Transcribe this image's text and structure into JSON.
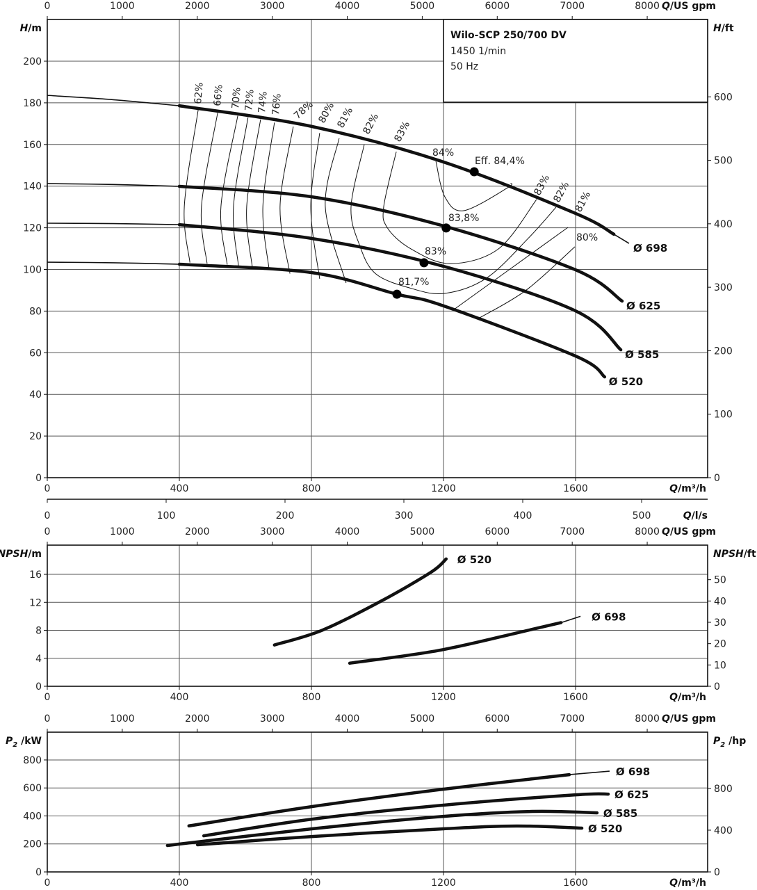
{
  "info_box": {
    "title": "Wilo-SCP 250/700 DV",
    "speed": "1450 1/min",
    "frequency": "50 Hz"
  },
  "chart_data": [
    {
      "type": "line",
      "id": "head",
      "ylabel_left": {
        "sym": "H",
        "unit": "/m"
      },
      "ylabel_right": {
        "sym": "H",
        "unit": "/ft"
      },
      "xlabel_bottom": {
        "sym": "Q",
        "unit": "/m³/h"
      },
      "xlabel_top": {
        "sym": "Q",
        "unit": "/US gpm"
      },
      "xlabel_ls": {
        "sym": "Q",
        "unit": "/l/s"
      },
      "xlim": [
        0,
        2000
      ],
      "ylim": [
        0,
        220
      ],
      "xticks": [
        "0",
        "400",
        "800",
        "1200",
        "1600"
      ],
      "yticks": [
        "0",
        "20",
        "40",
        "60",
        "80",
        "100",
        "120",
        "140",
        "160",
        "180",
        "200"
      ],
      "yticks_right_ft": [
        "0",
        "100",
        "200",
        "300",
        "400",
        "500",
        "600"
      ],
      "xticks_top_gpm": [
        "0",
        "1000",
        "2000",
        "3000",
        "4000",
        "5000",
        "6000",
        "7000",
        "8000"
      ],
      "xticks_ls": [
        "0",
        "100",
        "200",
        "300",
        "400",
        "500"
      ],
      "grid": true,
      "series": [
        {
          "name": "Ø 698",
          "thin_points": [
            [
              0,
              183.6
            ],
            [
              200,
              181.5
            ],
            [
              400,
              178.6
            ]
          ],
          "points": [
            [
              400,
              178.6
            ],
            [
              800,
              168.7
            ],
            [
              1200,
              151.6
            ],
            [
              1600,
              126.9
            ],
            [
              1716,
              116.9
            ]
          ],
          "tail": [
            [
              1716,
              116.9
            ],
            [
              1762,
              112.5
            ]
          ]
        },
        {
          "name": "Ø 625",
          "thin_points": [
            [
              0,
              141.2
            ],
            [
              200,
              140.8
            ],
            [
              400,
              139.9
            ]
          ],
          "points": [
            [
              400,
              139.9
            ],
            [
              800,
              134.9
            ],
            [
              1200,
              120.9
            ],
            [
              1600,
              99.8
            ],
            [
              1741,
              84.8
            ]
          ]
        },
        {
          "name": "Ø 585",
          "thin_points": [
            [
              0,
              122.2
            ],
            [
              200,
              122
            ],
            [
              400,
              121.5
            ]
          ],
          "points": [
            [
              400,
              121.5
            ],
            [
              800,
              114.9
            ],
            [
              1200,
              101.5
            ],
            [
              1600,
              80.1
            ],
            [
              1737,
              61.4
            ]
          ]
        },
        {
          "name": "Ø 520",
          "thin_points": [
            [
              0,
              103.5
            ],
            [
              200,
              103.2
            ],
            [
              400,
              102.5
            ]
          ],
          "points": [
            [
              400,
              102.5
            ],
            [
              800,
              98.5
            ],
            [
              1059,
              88.1
            ],
            [
              1200,
              82.5
            ],
            [
              1600,
              58.4
            ],
            [
              1688,
              48.4
            ]
          ]
        }
      ],
      "efficiency_lines": [
        {
          "label": "62%",
          "points": [
            [
              457,
              176.6
            ],
            [
              415,
              130.2
            ],
            [
              432,
              103.3
            ]
          ]
        },
        {
          "label": "66%",
          "points": [
            [
              516,
              175.2
            ],
            [
              467,
              130.2
            ],
            [
              484,
              102.8
            ]
          ]
        },
        {
          "label": "70%",
          "points": [
            [
              577,
              173.8
            ],
            [
              526,
              130.2
            ],
            [
              545,
              102.3
            ]
          ]
        },
        {
          "label": "72%",
          "points": [
            [
              608,
              173
            ],
            [
              564,
              130.2
            ],
            [
              579,
              101.8
            ]
          ]
        },
        {
          "label": "74%",
          "points": [
            [
              646,
              172
            ],
            [
              604,
              130.2
            ],
            [
              621,
              101
            ]
          ]
        },
        {
          "label": "76%",
          "points": [
            [
              688,
              170.5
            ],
            [
              653,
              130.2
            ],
            [
              672,
              99.8
            ]
          ]
        },
        {
          "label": "78%",
          "points": [
            [
              745,
              168.6
            ],
            [
              705,
              130.2
            ],
            [
              735,
              98
            ]
          ]
        },
        {
          "label": "80%",
          "points": [
            [
              825,
              165.5
            ],
            [
              798,
              130.2
            ],
            [
              825,
              95.5
            ]
          ]
        },
        {
          "label": "81%",
          "points": [
            [
              884,
              163
            ],
            [
              842,
              130.2
            ],
            [
              905,
              93.5
            ]
          ]
        },
        {
          "label": "82%",
          "points": [
            [
              960,
              160
            ],
            [
              920,
              130.2
            ],
            [
              945,
              112
            ],
            [
              994,
              98
            ],
            [
              1100,
              91
            ],
            [
              1204,
              88.5
            ],
            [
              1330,
              95.8
            ],
            [
              1457,
              115
            ],
            [
              1541,
              129.9
            ]
          ]
        },
        {
          "label": "83%",
          "points": [
            [
              1057,
              156.5
            ],
            [
              1019,
              130.2
            ],
            [
              1030,
              120
            ],
            [
              1100,
              110
            ],
            [
              1219,
              102.8
            ],
            [
              1366,
              109.8
            ],
            [
              1482,
              133.6
            ]
          ]
        },
        {
          "label": "84%",
          "points": [
            [
              1177,
              151.9
            ],
            [
              1204,
              134.9
            ],
            [
              1261,
              128.2
            ],
            [
              1394,
              139.2
            ],
            [
              1404,
              141.5
            ]
          ]
        }
      ],
      "efficiency_right_lines": [
        {
          "label": "83%"
        },
        {
          "label": "82%"
        },
        {
          "label": "81%",
          "points": [
            [
              1232,
              80.8
            ],
            [
              1400,
              100
            ],
            [
              1577,
              120.2
            ]
          ]
        },
        {
          "label": "80%",
          "points": [
            [
              1310,
              76.8
            ],
            [
              1450,
              90
            ],
            [
              1598,
              110.9
            ]
          ]
        }
      ],
      "operating_points": [
        {
          "label": "Eff. 84,4%",
          "q": 1293,
          "h": 146.9
        },
        {
          "label": "83,8%",
          "q": 1208,
          "h": 119.9
        },
        {
          "label": "83%",
          "q": 1141,
          "h": 103.2
        },
        {
          "label": "81,7%",
          "q": 1059,
          "h": 88.1
        }
      ]
    },
    {
      "type": "line",
      "id": "npsh",
      "ylabel_left": {
        "sym": "NPSH",
        "unit": "/m"
      },
      "ylabel_right": {
        "sym": "NPSH",
        "unit": "/ft"
      },
      "xlabel_bottom": {
        "sym": "Q",
        "unit": "/m³/h"
      },
      "xlabel_top": {
        "sym": "Q",
        "unit": "/US gpm"
      },
      "xlim": [
        0,
        2000
      ],
      "ylim": [
        0,
        20
      ],
      "xticks": [
        "0",
        "400",
        "800",
        "1200",
        "1600"
      ],
      "yticks": [
        "0",
        "4",
        "8",
        "12",
        "16"
      ],
      "yticks_right_ft": [
        "0",
        "10",
        "20",
        "30",
        "40",
        "50"
      ],
      "xticks_top_gpm": [
        "0",
        "1000",
        "2000",
        "3000",
        "4000",
        "5000",
        "6000",
        "7000",
        "8000"
      ],
      "grid": true,
      "series": [
        {
          "name": "Ø 520",
          "points": [
            [
              688,
              5.9
            ],
            [
              832,
              8
            ],
            [
              1008,
              12.1
            ],
            [
              1162,
              16.3
            ],
            [
              1208,
              18.2
            ]
          ]
        },
        {
          "name": "Ø 698",
          "points": [
            [
              916,
              3.3
            ],
            [
              1183,
              5.1
            ],
            [
              1429,
              7.7
            ],
            [
              1556,
              9.1
            ]
          ],
          "tail": [
            [
              1556,
              9.1
            ],
            [
              1615,
              10.0
            ]
          ]
        }
      ]
    },
    {
      "type": "line",
      "id": "power",
      "ylabel_left": {
        "sym": "P",
        "sub": "2",
        "unit": " /kW"
      },
      "ylabel_right": {
        "sym": "P",
        "sub": "2",
        "unit": " /hp"
      },
      "xlabel_bottom": {
        "sym": "Q",
        "unit": "/m³/h"
      },
      "xlabel_top": {
        "sym": "Q",
        "unit": "/US gpm"
      },
      "xlim": [
        0,
        2000
      ],
      "ylim": [
        0,
        1000
      ],
      "xticks": [
        "0",
        "400",
        "800",
        "1200",
        "1600"
      ],
      "yticks": [
        "0",
        "200",
        "400",
        "600",
        "800"
      ],
      "yticks_right_hp": [
        "0",
        "400",
        "800"
      ],
      "xticks_top_gpm": [
        "0",
        "1000",
        "2000",
        "3000",
        "4000",
        "5000",
        "6000",
        "7000",
        "8000"
      ],
      "grid": true,
      "series": [
        {
          "name": "Ø 698",
          "points": [
            [
              429,
              329
            ],
            [
              802,
              467
            ],
            [
              1200,
              591
            ],
            [
              1581,
              695
            ]
          ],
          "tail": [
            [
              1581,
              695
            ],
            [
              1703,
              720
            ]
          ]
        },
        {
          "name": "Ø 625",
          "points": [
            [
              474,
              258
            ],
            [
              802,
              377
            ],
            [
              1200,
              477
            ],
            [
              1600,
              551
            ],
            [
              1699,
              556
            ]
          ]
        },
        {
          "name": "Ø 585",
          "points": [
            [
              364,
              189
            ],
            [
              802,
              308
            ],
            [
              1200,
              397
            ],
            [
              1469,
              432
            ],
            [
              1665,
              422
            ]
          ]
        },
        {
          "name": "Ø 520",
          "points": [
            [
              455,
              194
            ],
            [
              802,
              253
            ],
            [
              1200,
              308
            ],
            [
              1421,
              328
            ],
            [
              1619,
              313
            ]
          ]
        }
      ]
    }
  ]
}
